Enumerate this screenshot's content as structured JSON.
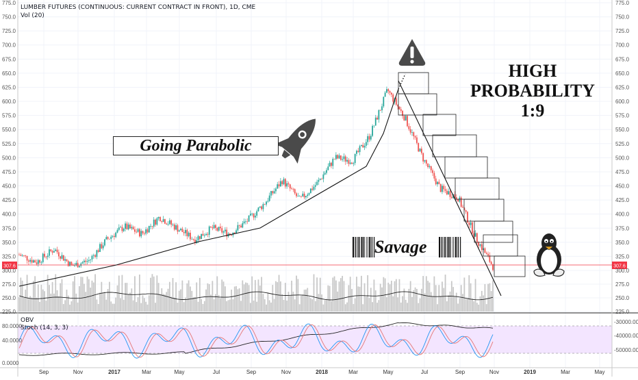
{
  "header": {
    "symbol_line": "LUMBER FUTURES (CONTINUOUS: CURRENT CONTRACT IN FRONT), 1D, CME",
    "volume_label": "Vol (20)",
    "obv_label": "OBV",
    "stoch_label": "Stoch (14, 3, 3)"
  },
  "annotations": {
    "going_parabolic": "Going Parabolic",
    "high_probability_line1": "HIGH",
    "high_probability_line2": "PROBABILITY",
    "high_probability_line3": "1:9",
    "savage": "Savage",
    "last_price": "307.6"
  },
  "icons": [
    "rocket-icon",
    "warning-icon",
    "penguin-icon",
    "barcode-icon"
  ],
  "colors": {
    "up": "#26a69a",
    "down": "#ef5350",
    "price_line": "#f23645",
    "stoch_k": "#2196f3",
    "stoch_d": "#e57373",
    "stoch_band": "#f3e5ff"
  },
  "chart_data": {
    "type": "candlestick",
    "y_axis": {
      "labels": [
        "775.0",
        "750.0",
        "725.0",
        "700.0",
        "675.0",
        "650.0",
        "625.0",
        "600.0",
        "575.0",
        "550.0",
        "525.0",
        "500.0",
        "475.0",
        "450.0",
        "425.0",
        "400.0",
        "375.0",
        "350.0",
        "325.0",
        "300.0",
        "275.0",
        "250.0",
        "225.0"
      ],
      "values": [
        775,
        750,
        725,
        700,
        675,
        650,
        625,
        600,
        575,
        550,
        525,
        500,
        475,
        450,
        425,
        400,
        375,
        350,
        325,
        300,
        275,
        250,
        225
      ],
      "ylim": [
        225,
        775
      ]
    },
    "x_axis": {
      "labels": [
        "Sep",
        "Nov",
        "2017",
        "Mar",
        "May",
        "Jul",
        "Sep",
        "Nov",
        "2018",
        "Mar",
        "May",
        "Jul",
        "Sep",
        "Nov",
        "2019",
        "Mar",
        "May"
      ],
      "bold": [
        "2017",
        "2018",
        "2019"
      ]
    },
    "price_path": [
      {
        "x": "Aug 2016",
        "y": 328
      },
      {
        "x": "Sep 2016",
        "y": 315
      },
      {
        "x": "Oct 2016",
        "y": 338
      },
      {
        "x": "Nov 2016",
        "y": 308
      },
      {
        "x": "Dec 2016",
        "y": 318
      },
      {
        "x": "Jan 2017",
        "y": 355
      },
      {
        "x": "Feb 2017",
        "y": 378
      },
      {
        "x": "Mar 2017",
        "y": 365
      },
      {
        "x": "Apr 2017",
        "y": 395
      },
      {
        "x": "May 2017",
        "y": 375
      },
      {
        "x": "Jun 2017",
        "y": 355
      },
      {
        "x": "Jul 2017",
        "y": 375
      },
      {
        "x": "Aug 2017",
        "y": 365
      },
      {
        "x": "Sep 2017",
        "y": 388
      },
      {
        "x": "Oct 2017",
        "y": 420
      },
      {
        "x": "Nov 2017",
        "y": 460
      },
      {
        "x": "Dec 2017",
        "y": 425
      },
      {
        "x": "Jan 2018",
        "y": 455
      },
      {
        "x": "Feb 2018",
        "y": 500
      },
      {
        "x": "Mar 2018",
        "y": 495
      },
      {
        "x": "Apr 2018",
        "y": 540
      },
      {
        "x": "May 2018",
        "y": 620
      },
      {
        "x": "Jun 2018",
        "y": 570
      },
      {
        "x": "Jul 2018",
        "y": 500
      },
      {
        "x": "Aug 2018",
        "y": 445
      },
      {
        "x": "Sep 2018",
        "y": 430
      },
      {
        "x": "Oct 2018",
        "y": 360
      },
      {
        "x": "Nov 2018",
        "y": 307.6
      }
    ],
    "last_price": 307.6,
    "volume_axis": {
      "labels": [
        "300.0",
        "275.0",
        "250.0",
        "225.0"
      ]
    },
    "obv_axis": {
      "labels": [
        "-30000.0000",
        "-40000.0000",
        "-50000.0000"
      ]
    },
    "stoch_axis": {
      "labels": [
        "80.0000",
        "40.0000",
        "0.0000"
      ],
      "bands": [
        20,
        80
      ]
    }
  }
}
